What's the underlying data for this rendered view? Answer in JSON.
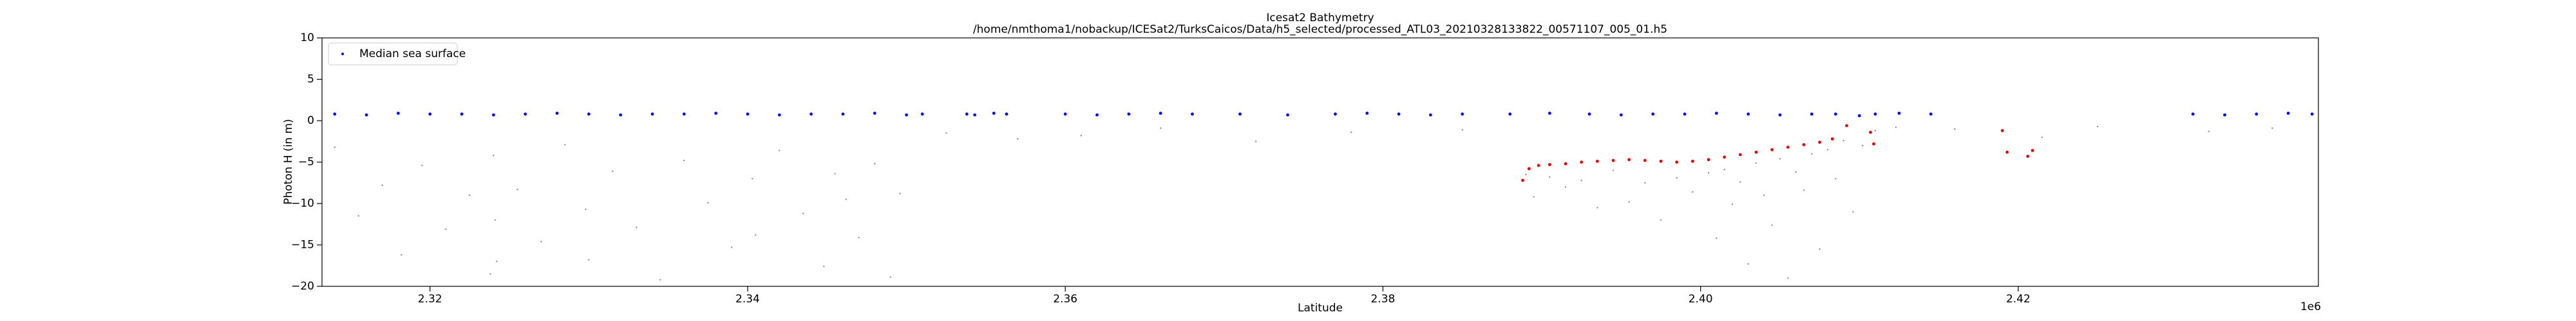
{
  "chart_data": {
    "type": "scatter",
    "title": "Icesat2 Bathymetry",
    "subtitle": "/home/nmthoma1/nobackup/ICESat2/TurksCaicos/Data/h5_selected/processed_ATL03_20210328133822_00571107_005_01.h5",
    "x_label": "Latitude",
    "y_label": "Photon H (in m)",
    "x_offset_label": "1e6",
    "xlim": [
      2313200,
      2438900
    ],
    "ylim": [
      -20,
      10
    ],
    "xticks": [
      {
        "value": 2320000,
        "label": "2.32"
      },
      {
        "value": 2340000,
        "label": "2.34"
      },
      {
        "value": 2360000,
        "label": "2.36"
      },
      {
        "value": 2380000,
        "label": "2.38"
      },
      {
        "value": 2400000,
        "label": "2.40"
      },
      {
        "value": 2420000,
        "label": "2.42"
      }
    ],
    "yticks": [
      {
        "value": -20,
        "label": "−20"
      },
      {
        "value": -15,
        "label": "−15"
      },
      {
        "value": -10,
        "label": "−10"
      },
      {
        "value": -5,
        "label": "−5"
      },
      0,
      5,
      10
    ],
    "grid": false,
    "legend": "upper left",
    "series": [
      {
        "color": "#000000",
        "x": [
          2314000,
          2315500,
          2317000,
          2318200,
          2319500,
          2321000,
          2322500,
          2323800,
          2324000,
          2324100,
          2324200,
          2325500,
          2327000,
          2328500,
          2329800,
          2330000,
          2331500,
          2333000,
          2334500,
          2336000,
          2337500,
          2339000,
          2340300,
          2340500,
          2342000,
          2343500,
          2344800,
          2345500,
          2346200,
          2347000,
          2348000,
          2349000,
          2349600,
          2352500,
          2357000,
          2361000,
          2366000,
          2372000,
          2378000,
          2385000,
          2389000,
          2389500,
          2390500,
          2391500,
          2392500,
          2393500,
          2394500,
          2395500,
          2396500,
          2397500,
          2398500,
          2399500,
          2400500,
          2401000,
          2401500,
          2402000,
          2402500,
          2403000,
          2403500,
          2404000,
          2404500,
          2405000,
          2405500,
          2406000,
          2406500,
          2407000,
          2407500,
          2408000,
          2408500,
          2409000,
          2409600,
          2410200,
          2411000,
          2412300,
          2416000,
          2421500,
          2425000,
          2432000,
          2436000
        ],
        "y": [
          -3.2,
          -11.5,
          -7.8,
          -16.2,
          -5.4,
          -13.1,
          -9.0,
          -18.5,
          -4.2,
          -12.0,
          -17.0,
          -8.3,
          -14.6,
          -2.9,
          -10.7,
          -16.8,
          -6.1,
          -12.9,
          -19.2,
          -4.8,
          -9.9,
          -15.3,
          -7.0,
          -13.8,
          -3.6,
          -11.2,
          -17.6,
          -6.4,
          -9.5,
          -14.1,
          -5.2,
          -18.9,
          -8.8,
          -1.5,
          -2.2,
          -1.8,
          -0.9,
          -2.5,
          -1.4,
          -1.1,
          -6.5,
          -9.2,
          -6.8,
          -8.0,
          -7.2,
          -10.5,
          -6.0,
          -9.8,
          -7.5,
          -12.0,
          -6.9,
          -8.6,
          -6.3,
          -14.2,
          -5.9,
          -10.1,
          -7.4,
          -17.3,
          -5.1,
          -9.0,
          -12.6,
          -4.6,
          -19.0,
          -6.2,
          -8.4,
          -4.0,
          -15.5,
          -3.5,
          -7.0,
          -2.4,
          -11.0,
          -3.0,
          -1.2,
          -0.8,
          -1.0,
          -2.0,
          -0.7,
          -1.3,
          -0.9
        ]
      },
      {
        "name": "Median sea surface",
        "color": "#0000ff",
        "x": [
          2314000,
          2316000,
          2318000,
          2320000,
          2322000,
          2324000,
          2326000,
          2328000,
          2330000,
          2332000,
          2334000,
          2336000,
          2338000,
          2340000,
          2342000,
          2344000,
          2346000,
          2348000,
          2350000,
          2351000,
          2353800,
          2354300,
          2355500,
          2356300,
          2360000,
          2362000,
          2364000,
          2366000,
          2368000,
          2371000,
          2374000,
          2377000,
          2379000,
          2381000,
          2383000,
          2385000,
          2388000,
          2390500,
          2393000,
          2395000,
          2397000,
          2399000,
          2401000,
          2403000,
          2405000,
          2407000,
          2408500,
          2410000,
          2411000,
          2412500,
          2414500,
          2431000,
          2433000,
          2435000,
          2437000,
          2438500
        ],
        "y": [
          0.8,
          0.7,
          0.9,
          0.8,
          0.8,
          0.7,
          0.8,
          0.9,
          0.8,
          0.7,
          0.8,
          0.8,
          0.9,
          0.8,
          0.7,
          0.8,
          0.8,
          0.9,
          0.7,
          0.8,
          0.8,
          0.7,
          0.9,
          0.8,
          0.8,
          0.7,
          0.8,
          0.9,
          0.8,
          0.8,
          0.7,
          0.8,
          0.9,
          0.8,
          0.7,
          0.8,
          0.8,
          0.9,
          0.8,
          0.7,
          0.8,
          0.8,
          0.9,
          0.8,
          0.7,
          0.8,
          0.8,
          0.6,
          0.8,
          0.9,
          0.8,
          0.8,
          0.7,
          0.8,
          0.9,
          0.8
        ]
      },
      {
        "color": "#e00000",
        "x": [
          2388800,
          2389200,
          2389800,
          2390500,
          2391500,
          2392500,
          2393500,
          2394500,
          2395500,
          2396500,
          2397500,
          2398500,
          2399500,
          2400500,
          2401500,
          2402500,
          2403500,
          2404500,
          2405500,
          2406500,
          2407500,
          2408300,
          2409200,
          2410700,
          2410900,
          2419000,
          2419300,
          2420600,
          2420900
        ],
        "y": [
          -7.2,
          -5.8,
          -5.4,
          -5.3,
          -5.2,
          -5.0,
          -4.9,
          -4.8,
          -4.7,
          -4.8,
          -4.9,
          -5.0,
          -4.9,
          -4.7,
          -4.4,
          -4.1,
          -3.8,
          -3.5,
          -3.2,
          -2.9,
          -2.6,
          -2.2,
          -0.6,
          -1.4,
          -2.8,
          -1.2,
          -3.8,
          -4.3,
          -3.6
        ]
      }
    ]
  }
}
